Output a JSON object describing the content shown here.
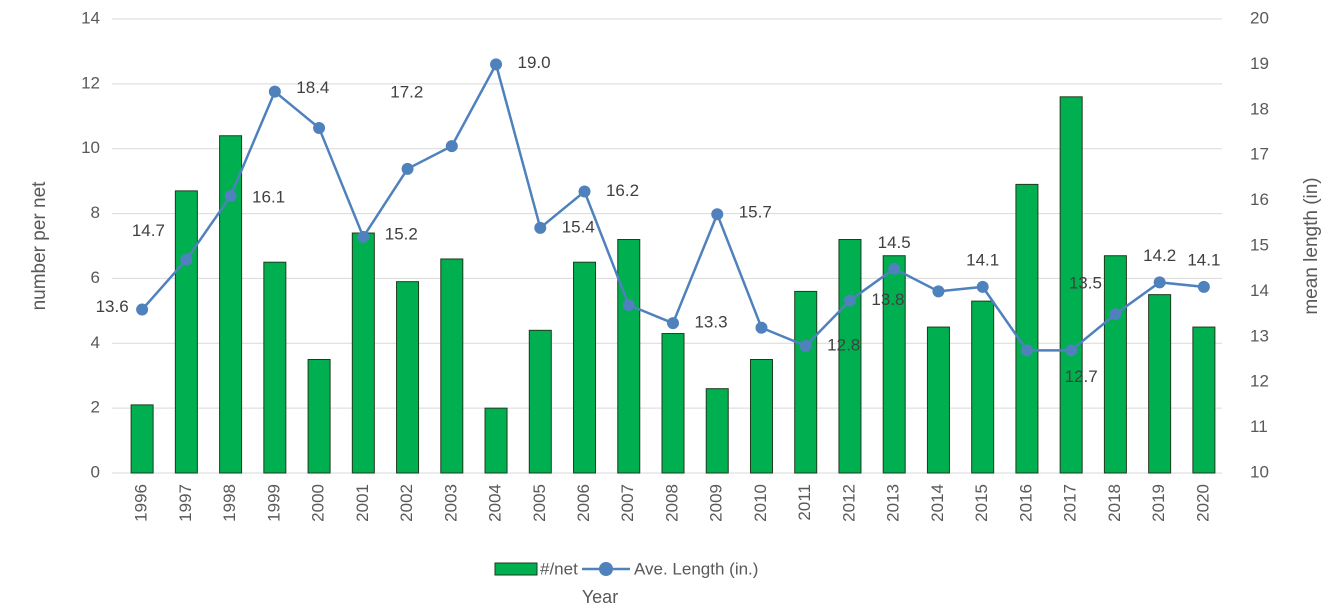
{
  "chart_data": {
    "type": "bar",
    "x_label": "Year",
    "y_label": "number per net",
    "y2_label": "mean length (in)",
    "categories": [
      "1996",
      "1997",
      "1998",
      "1999",
      "2000",
      "2001",
      "2002",
      "2003",
      "2004",
      "2005",
      "2006",
      "2007",
      "2008",
      "2009",
      "2010",
      "2011",
      "2012",
      "2013",
      "2014",
      "2015",
      "2016",
      "2017",
      "2018",
      "2019",
      "2020"
    ],
    "series": [
      {
        "name": "#/net",
        "type": "bar",
        "color": "#00b050",
        "values": [
          2.1,
          8.7,
          10.4,
          6.5,
          3.5,
          7.4,
          5.9,
          6.6,
          2.0,
          4.4,
          6.5,
          7.2,
          4.3,
          2.6,
          3.5,
          5.6,
          7.2,
          6.7,
          4.5,
          5.3,
          8.9,
          11.6,
          6.7,
          5.5,
          4.5
        ]
      },
      {
        "name": "Ave. Length (in.)",
        "type": "line",
        "axis": "y2",
        "color": "#4f81bd",
        "values": [
          13.6,
          14.7,
          16.1,
          18.4,
          17.6,
          15.2,
          16.7,
          17.2,
          19.0,
          15.4,
          16.2,
          13.7,
          13.3,
          15.7,
          13.2,
          12.8,
          13.8,
          14.5,
          14.0,
          14.1,
          12.7,
          12.7,
          13.5,
          14.2,
          14.1
        ],
        "value_labels": [
          "13.6",
          "14.7",
          "16.1",
          "18.4",
          null,
          "15.2",
          null,
          "17.2",
          "19.0",
          "15.4",
          "16.2",
          null,
          "13.3",
          "15.7",
          null,
          "12.8",
          "13.8",
          "14.5",
          null,
          "14.1",
          null,
          "12.7",
          "13.5",
          "14.2",
          "14.1"
        ]
      }
    ],
    "ylim": [
      0,
      14
    ],
    "yticks": [
      0,
      2,
      4,
      6,
      8,
      10,
      12,
      14
    ],
    "y2lim": [
      10,
      20
    ],
    "y2ticks": [
      10,
      11,
      12,
      13,
      14,
      15,
      16,
      17,
      18,
      19,
      20
    ],
    "grid": true,
    "legend": "bottom"
  }
}
